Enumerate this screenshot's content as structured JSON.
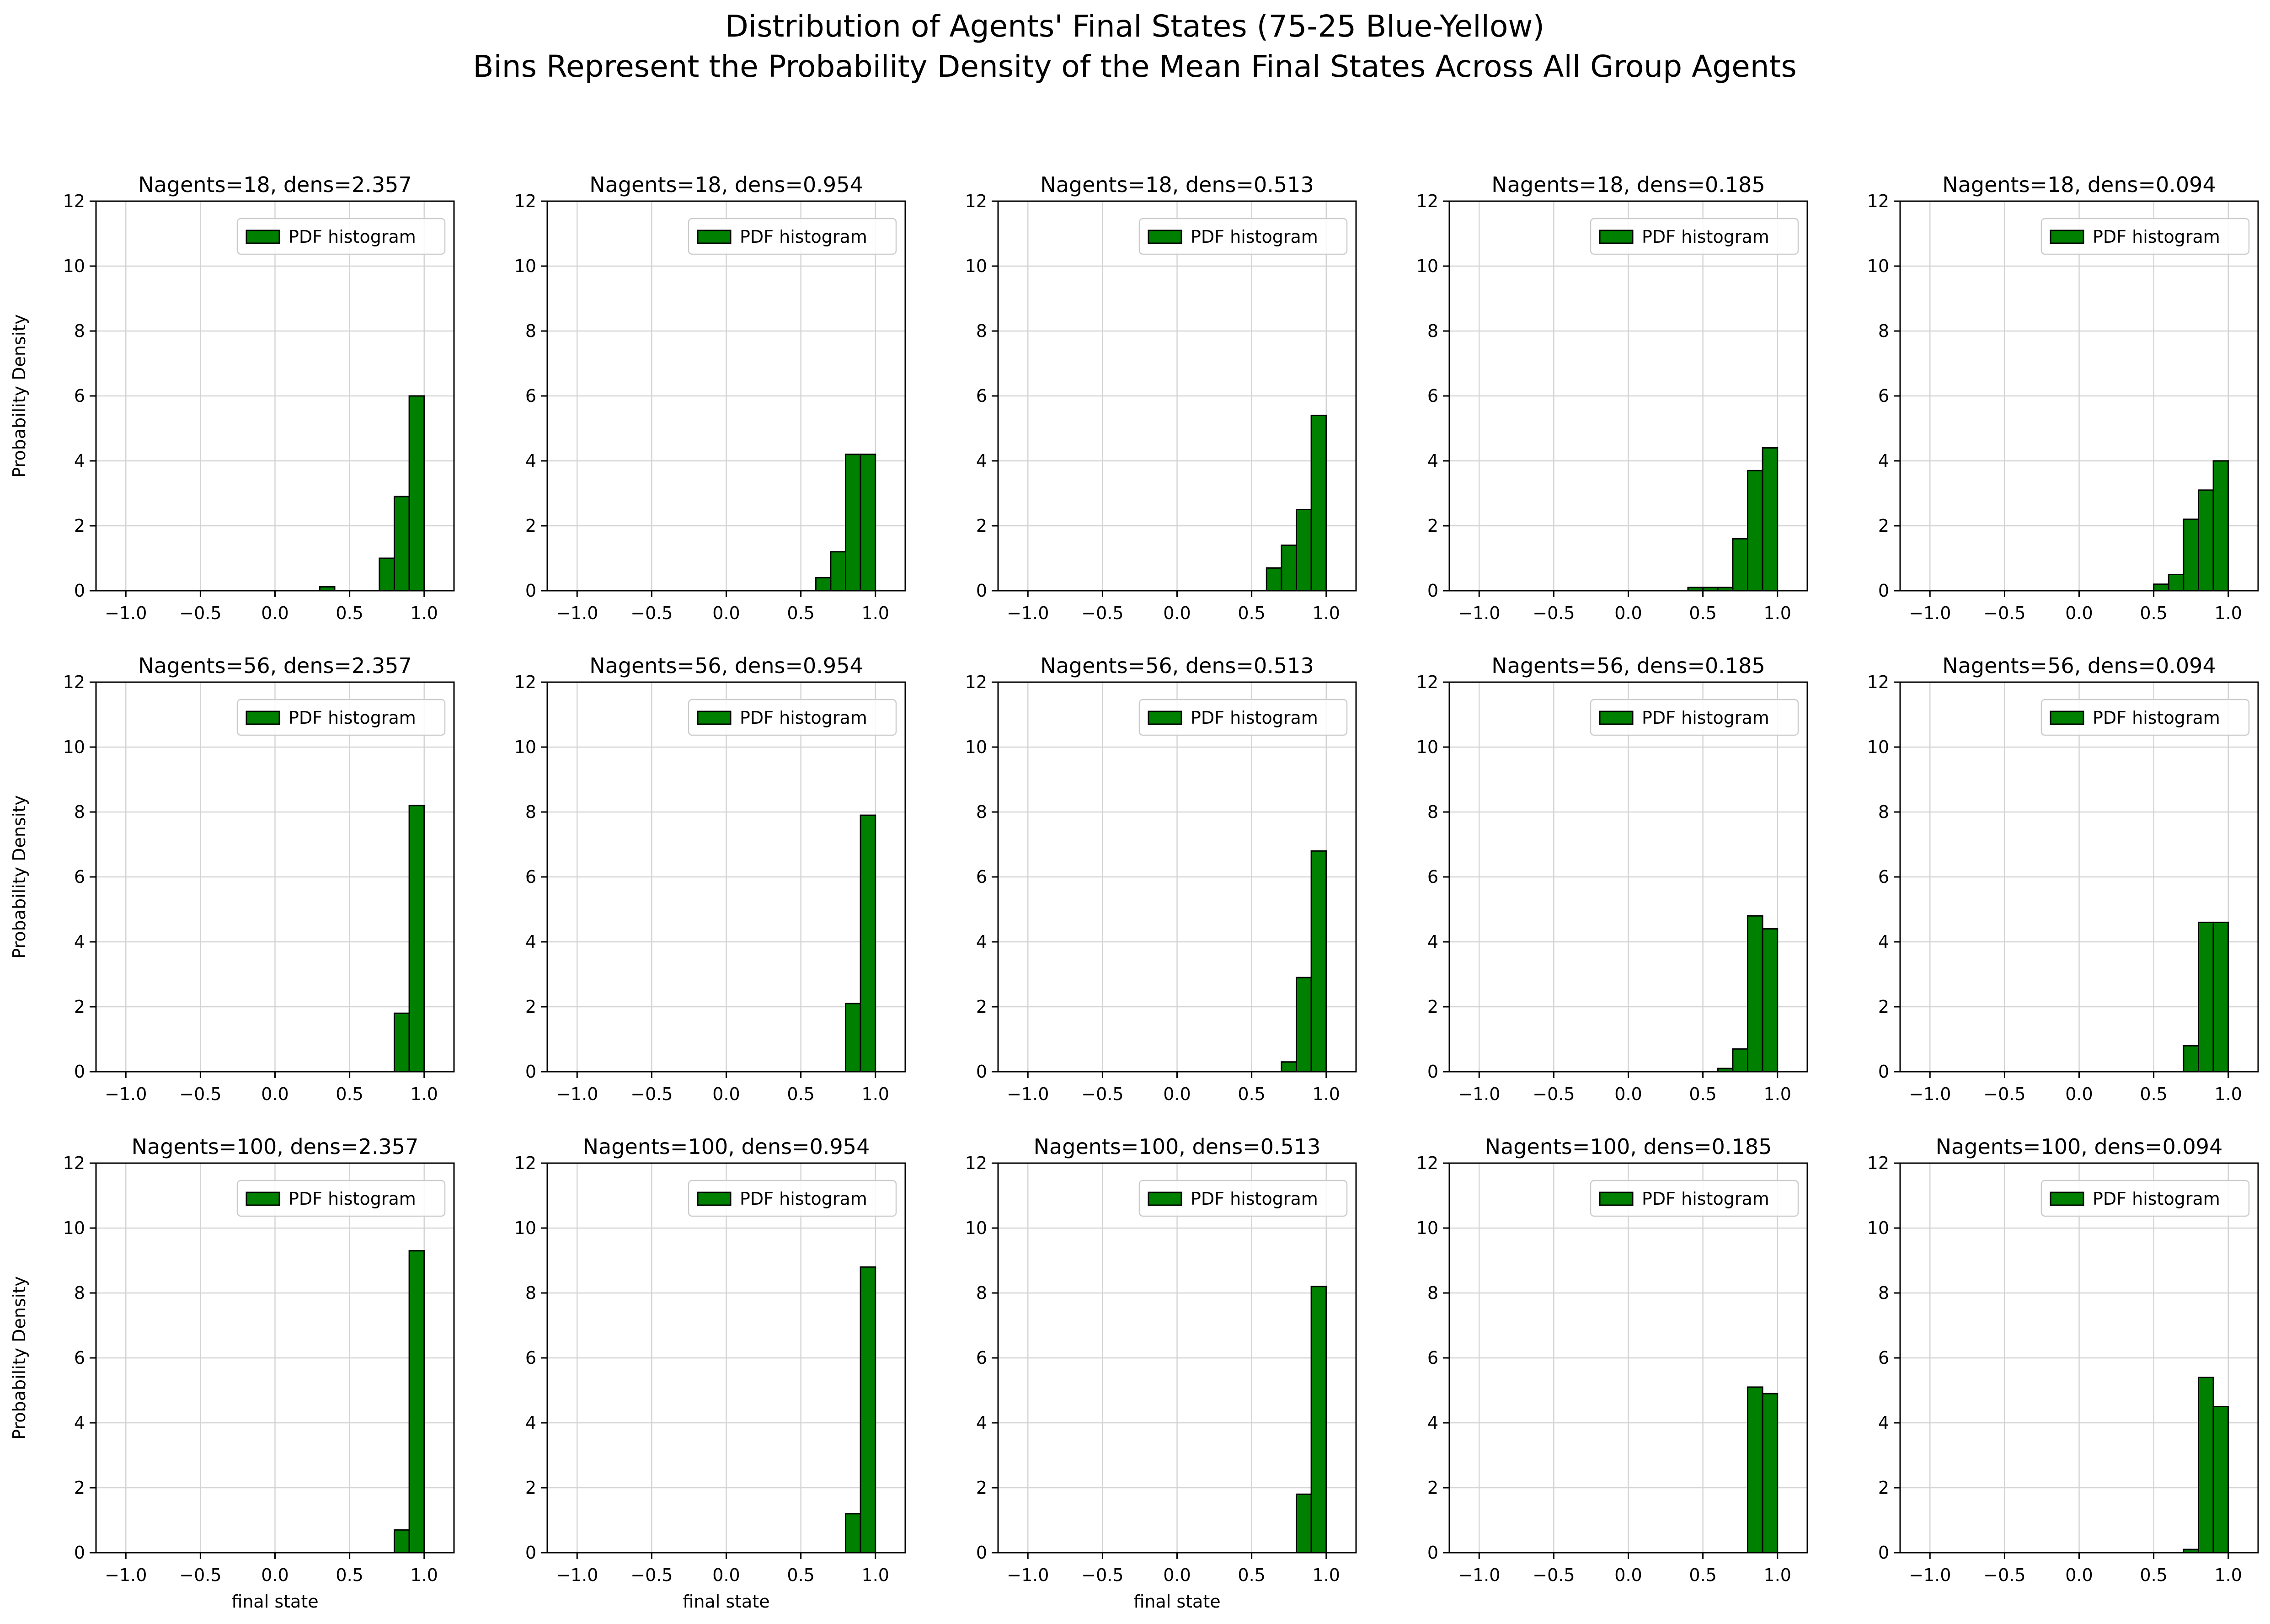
{
  "figure": {
    "title_line1": "Distribution of Agents' Final States (75-25 Blue-Yellow)",
    "title_line2": "Bins Represent the Probability Density of the Mean Final States Across All Group Agents"
  },
  "colors": {
    "bar_fill": "#008000",
    "bar_edge": "#000000",
    "grid": "#d3d3d3",
    "axis": "#000000"
  },
  "chart_data": [
    {
      "type": "bar",
      "title": "Nagents=18, dens=2.357",
      "ylabel": "Probability Density",
      "xlabel": "",
      "legend": "PDF histogram",
      "legend_position": "upper right",
      "grid": true,
      "xlim": [
        -1.2,
        1.2
      ],
      "ylim": [
        0,
        12
      ],
      "xticks": [
        "−1.0",
        "−0.5",
        "0.0",
        "0.5",
        "1.0"
      ],
      "yticks": [
        "0",
        "2",
        "4",
        "6",
        "8",
        "10",
        "12"
      ],
      "bin_width": 0.1,
      "bins": [
        {
          "x": 0.3,
          "y": 0.12
        },
        {
          "x": 0.7,
          "y": 1.0
        },
        {
          "x": 0.8,
          "y": 2.9
        },
        {
          "x": 0.9,
          "y": 6.0
        }
      ]
    },
    {
      "type": "bar",
      "title": "Nagents=18, dens=0.954",
      "ylabel": "",
      "xlabel": "",
      "legend": "PDF histogram",
      "legend_position": "upper right",
      "grid": true,
      "xlim": [
        -1.2,
        1.2
      ],
      "ylim": [
        0,
        12
      ],
      "xticks": [
        "−1.0",
        "−0.5",
        "0.0",
        "0.5",
        "1.0"
      ],
      "yticks": [
        "0",
        "2",
        "4",
        "6",
        "8",
        "10",
        "12"
      ],
      "bin_width": 0.1,
      "bins": [
        {
          "x": 0.6,
          "y": 0.4
        },
        {
          "x": 0.7,
          "y": 1.2
        },
        {
          "x": 0.8,
          "y": 4.2
        },
        {
          "x": 0.9,
          "y": 4.2
        }
      ]
    },
    {
      "type": "bar",
      "title": "Nagents=18, dens=0.513",
      "ylabel": "",
      "xlabel": "",
      "legend": "PDF histogram",
      "legend_position": "upper right",
      "grid": true,
      "xlim": [
        -1.2,
        1.2
      ],
      "ylim": [
        0,
        12
      ],
      "xticks": [
        "−1.0",
        "−0.5",
        "0.0",
        "0.5",
        "1.0"
      ],
      "yticks": [
        "0",
        "2",
        "4",
        "6",
        "8",
        "10",
        "12"
      ],
      "bin_width": 0.1,
      "bins": [
        {
          "x": 0.6,
          "y": 0.7
        },
        {
          "x": 0.7,
          "y": 1.4
        },
        {
          "x": 0.8,
          "y": 2.5
        },
        {
          "x": 0.9,
          "y": 5.4
        }
      ]
    },
    {
      "type": "bar",
      "title": "Nagents=18, dens=0.185",
      "ylabel": "",
      "xlabel": "",
      "legend": "PDF histogram",
      "legend_position": "upper right",
      "grid": true,
      "xlim": [
        -1.2,
        1.2
      ],
      "ylim": [
        0,
        12
      ],
      "xticks": [
        "−1.0",
        "−0.5",
        "0.0",
        "0.5",
        "1.0"
      ],
      "yticks": [
        "0",
        "2",
        "4",
        "6",
        "8",
        "10",
        "12"
      ],
      "bin_width": 0.1,
      "bins": [
        {
          "x": 0.4,
          "y": 0.1
        },
        {
          "x": 0.5,
          "y": 0.1
        },
        {
          "x": 0.6,
          "y": 0.1
        },
        {
          "x": 0.7,
          "y": 1.6
        },
        {
          "x": 0.8,
          "y": 3.7
        },
        {
          "x": 0.9,
          "y": 4.4
        }
      ]
    },
    {
      "type": "bar",
      "title": "Nagents=18, dens=0.094",
      "ylabel": "",
      "xlabel": "",
      "legend": "PDF histogram",
      "legend_position": "upper right",
      "grid": true,
      "xlim": [
        -1.2,
        1.2
      ],
      "ylim": [
        0,
        12
      ],
      "xticks": [
        "−1.0",
        "−0.5",
        "0.0",
        "0.5",
        "1.0"
      ],
      "yticks": [
        "0",
        "2",
        "4",
        "6",
        "8",
        "10",
        "12"
      ],
      "bin_width": 0.1,
      "bins": [
        {
          "x": 0.5,
          "y": 0.2
        },
        {
          "x": 0.6,
          "y": 0.5
        },
        {
          "x": 0.7,
          "y": 2.2
        },
        {
          "x": 0.8,
          "y": 3.1
        },
        {
          "x": 0.9,
          "y": 4.0
        }
      ]
    },
    {
      "type": "bar",
      "title": "Nagents=56, dens=2.357",
      "ylabel": "Probability Density",
      "xlabel": "",
      "legend": "PDF histogram",
      "legend_position": "upper right",
      "grid": true,
      "xlim": [
        -1.2,
        1.2
      ],
      "ylim": [
        0,
        12
      ],
      "xticks": [
        "−1.0",
        "−0.5",
        "0.0",
        "0.5",
        "1.0"
      ],
      "yticks": [
        "0",
        "2",
        "4",
        "6",
        "8",
        "10",
        "12"
      ],
      "bin_width": 0.1,
      "bins": [
        {
          "x": 0.8,
          "y": 1.8
        },
        {
          "x": 0.9,
          "y": 8.2
        }
      ]
    },
    {
      "type": "bar",
      "title": "Nagents=56, dens=0.954",
      "ylabel": "",
      "xlabel": "",
      "legend": "PDF histogram",
      "legend_position": "upper right",
      "grid": true,
      "xlim": [
        -1.2,
        1.2
      ],
      "ylim": [
        0,
        12
      ],
      "xticks": [
        "−1.0",
        "−0.5",
        "0.0",
        "0.5",
        "1.0"
      ],
      "yticks": [
        "0",
        "2",
        "4",
        "6",
        "8",
        "10",
        "12"
      ],
      "bin_width": 0.1,
      "bins": [
        {
          "x": 0.8,
          "y": 2.1
        },
        {
          "x": 0.9,
          "y": 7.9
        }
      ]
    },
    {
      "type": "bar",
      "title": "Nagents=56, dens=0.513",
      "ylabel": "",
      "xlabel": "",
      "legend": "PDF histogram",
      "legend_position": "upper right",
      "grid": true,
      "xlim": [
        -1.2,
        1.2
      ],
      "ylim": [
        0,
        12
      ],
      "xticks": [
        "−1.0",
        "−0.5",
        "0.0",
        "0.5",
        "1.0"
      ],
      "yticks": [
        "0",
        "2",
        "4",
        "6",
        "8",
        "10",
        "12"
      ],
      "bin_width": 0.1,
      "bins": [
        {
          "x": 0.7,
          "y": 0.3
        },
        {
          "x": 0.8,
          "y": 2.9
        },
        {
          "x": 0.9,
          "y": 6.8
        }
      ]
    },
    {
      "type": "bar",
      "title": "Nagents=56, dens=0.185",
      "ylabel": "",
      "xlabel": "",
      "legend": "PDF histogram",
      "legend_position": "upper right",
      "grid": true,
      "xlim": [
        -1.2,
        1.2
      ],
      "ylim": [
        0,
        12
      ],
      "xticks": [
        "−1.0",
        "−0.5",
        "0.0",
        "0.5",
        "1.0"
      ],
      "yticks": [
        "0",
        "2",
        "4",
        "6",
        "8",
        "10",
        "12"
      ],
      "bin_width": 0.1,
      "bins": [
        {
          "x": 0.6,
          "y": 0.1
        },
        {
          "x": 0.7,
          "y": 0.7
        },
        {
          "x": 0.8,
          "y": 4.8
        },
        {
          "x": 0.9,
          "y": 4.4
        }
      ]
    },
    {
      "type": "bar",
      "title": "Nagents=56, dens=0.094",
      "ylabel": "",
      "xlabel": "",
      "legend": "PDF histogram",
      "legend_position": "upper right",
      "grid": true,
      "xlim": [
        -1.2,
        1.2
      ],
      "ylim": [
        0,
        12
      ],
      "xticks": [
        "−1.0",
        "−0.5",
        "0.0",
        "0.5",
        "1.0"
      ],
      "yticks": [
        "0",
        "2",
        "4",
        "6",
        "8",
        "10",
        "12"
      ],
      "bin_width": 0.1,
      "bins": [
        {
          "x": 0.7,
          "y": 0.8
        },
        {
          "x": 0.8,
          "y": 4.6
        },
        {
          "x": 0.9,
          "y": 4.6
        }
      ]
    },
    {
      "type": "bar",
      "title": "Nagents=100, dens=2.357",
      "ylabel": "Probability  Density",
      "xlabel": "final state",
      "legend": "PDF histogram",
      "legend_position": "upper right",
      "grid": true,
      "xlim": [
        -1.2,
        1.2
      ],
      "ylim": [
        0,
        12
      ],
      "xticks": [
        "−1.0",
        "−0.5",
        "0.0",
        "0.5",
        "1.0"
      ],
      "yticks": [
        "0",
        "2",
        "4",
        "6",
        "8",
        "10",
        "12"
      ],
      "bin_width": 0.1,
      "bins": [
        {
          "x": 0.8,
          "y": 0.7
        },
        {
          "x": 0.9,
          "y": 9.3
        }
      ]
    },
    {
      "type": "bar",
      "title": "Nagents=100, dens=0.954",
      "ylabel": "",
      "xlabel": "final state",
      "legend": "PDF histogram",
      "legend_position": "upper right",
      "grid": true,
      "xlim": [
        -1.2,
        1.2
      ],
      "ylim": [
        0,
        12
      ],
      "xticks": [
        "−1.0",
        "−0.5",
        "0.0",
        "0.5",
        "1.0"
      ],
      "yticks": [
        "0",
        "2",
        "4",
        "6",
        "8",
        "10",
        "12"
      ],
      "bin_width": 0.1,
      "bins": [
        {
          "x": 0.8,
          "y": 1.2
        },
        {
          "x": 0.9,
          "y": 8.8
        }
      ]
    },
    {
      "type": "bar",
      "title": "Nagents=100, dens=0.513",
      "ylabel": "",
      "xlabel": "final state",
      "legend": "PDF histogram",
      "legend_position": "upper right",
      "grid": true,
      "xlim": [
        -1.2,
        1.2
      ],
      "ylim": [
        0,
        12
      ],
      "xticks": [
        "−1.0",
        "−0.5",
        "0.0",
        "0.5",
        "1.0"
      ],
      "yticks": [
        "0",
        "2",
        "4",
        "6",
        "8",
        "10",
        "12"
      ],
      "bin_width": 0.1,
      "bins": [
        {
          "x": 0.8,
          "y": 1.8
        },
        {
          "x": 0.9,
          "y": 8.2
        }
      ]
    },
    {
      "type": "bar",
      "title": "Nagents=100, dens=0.185",
      "ylabel": "",
      "xlabel": "",
      "legend": "PDF histogram",
      "legend_position": "upper right",
      "grid": true,
      "xlim": [
        -1.2,
        1.2
      ],
      "ylim": [
        0,
        12
      ],
      "xticks": [
        "−1.0",
        "−0.5",
        "0.0",
        "0.5",
        "1.0"
      ],
      "yticks": [
        "0",
        "2",
        "4",
        "6",
        "8",
        "10",
        "12"
      ],
      "bin_width": 0.1,
      "bins": [
        {
          "x": 0.8,
          "y": 5.1
        },
        {
          "x": 0.9,
          "y": 4.9
        }
      ]
    },
    {
      "type": "bar",
      "title": "Nagents=100, dens=0.094",
      "ylabel": "",
      "xlabel": "",
      "legend": "PDF histogram",
      "legend_position": "upper right",
      "grid": true,
      "xlim": [
        -1.2,
        1.2
      ],
      "ylim": [
        0,
        12
      ],
      "xticks": [
        "−1.0",
        "−0.5",
        "0.0",
        "0.5",
        "1.0"
      ],
      "yticks": [
        "0",
        "2",
        "4",
        "6",
        "8",
        "10",
        "12"
      ],
      "bin_width": 0.1,
      "bins": [
        {
          "x": 0.7,
          "y": 0.1
        },
        {
          "x": 0.8,
          "y": 5.4
        },
        {
          "x": 0.9,
          "y": 4.5
        }
      ]
    }
  ]
}
